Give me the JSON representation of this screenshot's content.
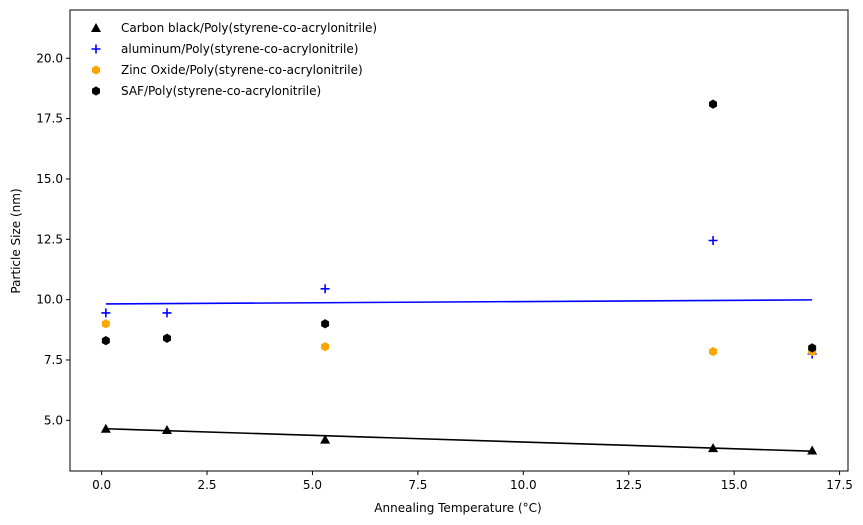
{
  "chart_data": {
    "type": "scatter",
    "title": "",
    "xlabel": "Annealing Temperature (°C)",
    "ylabel": "Particle Size (nm)",
    "xlim": [
      -0.75,
      17.7
    ],
    "ylim": [
      2.9,
      22.0
    ],
    "xticks": [
      0.0,
      2.5,
      5.0,
      7.5,
      10.0,
      12.5,
      15.0,
      17.5
    ],
    "xtick_labels": [
      "0.0",
      "2.5",
      "5.0",
      "7.5",
      "10.0",
      "12.5",
      "15.0",
      "17.5"
    ],
    "yticks": [
      5.0,
      7.5,
      10.0,
      12.5,
      15.0,
      17.5,
      20.0
    ],
    "ytick_labels": [
      "5.0",
      "7.5",
      "10.0",
      "12.5",
      "15.0",
      "17.5",
      "20.0"
    ],
    "grid": false,
    "legend_position": "top-left",
    "series": [
      {
        "name": "Carbon black/Poly(styrene-co-acrylonitrile)",
        "marker": "triangle",
        "color": "#000000",
        "x": [
          0.1,
          1.55,
          5.3,
          14.5,
          16.85
        ],
        "y": [
          4.65,
          4.6,
          4.2,
          3.85,
          3.75
        ],
        "trendline": {
          "x": [
            0.1,
            16.85
          ],
          "y": [
            4.65,
            3.72
          ]
        }
      },
      {
        "name": "aluminum/Poly(styrene-co-acrylonitrile)",
        "marker": "plus",
        "color": "#0000ff",
        "x": [
          0.1,
          1.55,
          5.3,
          14.5,
          16.85
        ],
        "y": [
          9.45,
          9.45,
          10.45,
          12.45,
          7.75
        ],
        "trendline": {
          "x": [
            0.1,
            16.85
          ],
          "y": [
            9.82,
            9.99
          ]
        }
      },
      {
        "name": "Zinc Oxide/Poly(styrene-co-acrylonitrile)",
        "marker": "hexagon",
        "color": "#ffa500",
        "x": [
          0.1,
          1.55,
          5.3,
          14.5,
          16.85
        ],
        "y": [
          9.0,
          8.4,
          8.05,
          7.85,
          7.85
        ]
      },
      {
        "name": "SAF/Poly(styrene-co-acrylonitrile)",
        "marker": "hexagon",
        "color": "#000000",
        "x": [
          0.1,
          1.55,
          5.3,
          14.5,
          16.85
        ],
        "y": [
          8.3,
          8.4,
          9.0,
          18.1,
          8.0
        ]
      }
    ]
  }
}
